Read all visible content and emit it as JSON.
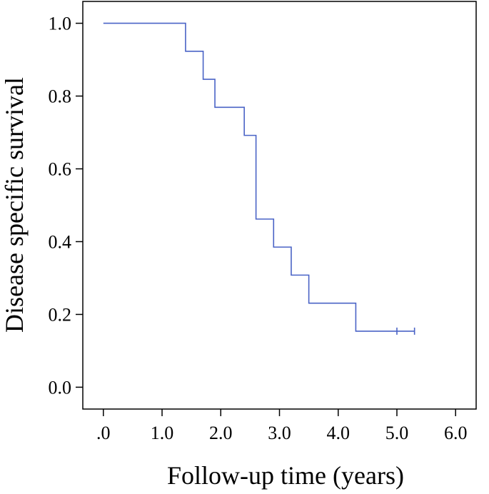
{
  "chart_data": {
    "type": "line",
    "subtype": "kaplan-meier step curve",
    "xlabel": "Follow-up time (years)",
    "ylabel": "Disease specific survival",
    "xlim": [
      -0.35,
      6.35
    ],
    "ylim": [
      -0.06,
      1.06
    ],
    "xticks": [
      0,
      1,
      2,
      3,
      4,
      5,
      6
    ],
    "xtick_labels": [
      ".0",
      "1.0",
      "2.0",
      "3.0",
      "4.0",
      "5.0",
      "6.0"
    ],
    "yticks": [
      0,
      0.2,
      0.4,
      0.6,
      0.8,
      1.0
    ],
    "ytick_labels": [
      "0.0",
      "0.2",
      "0.4",
      "0.6",
      "0.8",
      "1.0"
    ],
    "grid": false,
    "line_color": "#4a63c6",
    "series": [
      {
        "steps": [
          {
            "x": 0.0,
            "y": 1.0
          },
          {
            "x": 1.4,
            "y": 0.923
          },
          {
            "x": 1.7,
            "y": 0.846
          },
          {
            "x": 1.9,
            "y": 0.769
          },
          {
            "x": 2.4,
            "y": 0.692
          },
          {
            "x": 2.6,
            "y": 0.462
          },
          {
            "x": 2.9,
            "y": 0.385
          },
          {
            "x": 3.2,
            "y": 0.308
          },
          {
            "x": 3.5,
            "y": 0.231
          },
          {
            "x": 4.3,
            "y": 0.154
          }
        ],
        "end_x": 5.3,
        "censored": [
          {
            "x": 5.0,
            "y": 0.154
          },
          {
            "x": 5.3,
            "y": 0.154
          }
        ]
      }
    ]
  }
}
